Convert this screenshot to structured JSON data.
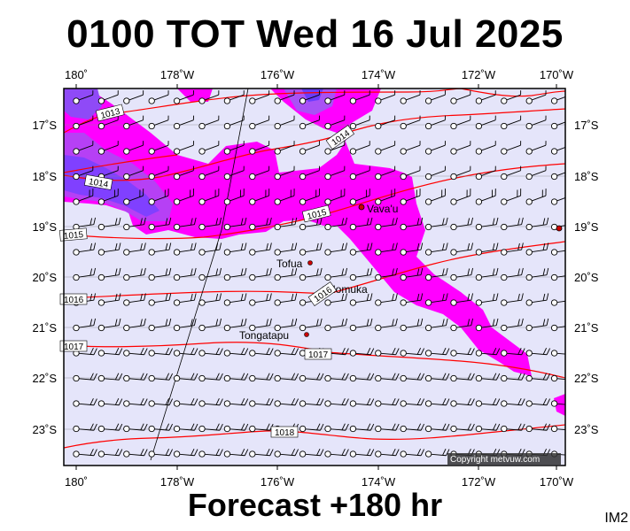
{
  "title": "0100 TOT Wed 16 Jul 2025",
  "footer": "Forecast +180 hr",
  "corner_label": "IM2",
  "copyright": "Copyright metvuw.com",
  "colors": {
    "background": "#e5e5fa",
    "rain_light": "#ff00ff",
    "rain_mid": "#cc44ee",
    "rain_heavy": "#7a4cff",
    "isobar": "#ff0000",
    "barb": "#000000"
  },
  "axes": {
    "top_lon": [
      "180˚",
      "178˚W",
      "176˚W",
      "174˚W",
      "172˚W",
      "170˚W"
    ],
    "bottom_lon": [
      "180˚",
      "178˚W",
      "176˚W",
      "174˚W",
      "172˚W",
      "170˚W"
    ],
    "left_lat": [
      "17˚S",
      "18˚S",
      "19˚S",
      "20˚S",
      "21˚S",
      "22˚S",
      "23˚S"
    ],
    "right_lat": [
      "17˚S",
      "18˚S",
      "19˚S",
      "20˚S",
      "21˚S",
      "22˚S",
      "23˚S"
    ]
  },
  "isobar_labels": [
    "1013",
    "1014",
    "1014",
    "1015",
    "1015",
    "1016",
    "1016",
    "1017",
    "1017",
    "1018"
  ],
  "places": [
    "Vava'u",
    "Tofua",
    "Nomuka",
    "Tongatapu"
  ]
}
